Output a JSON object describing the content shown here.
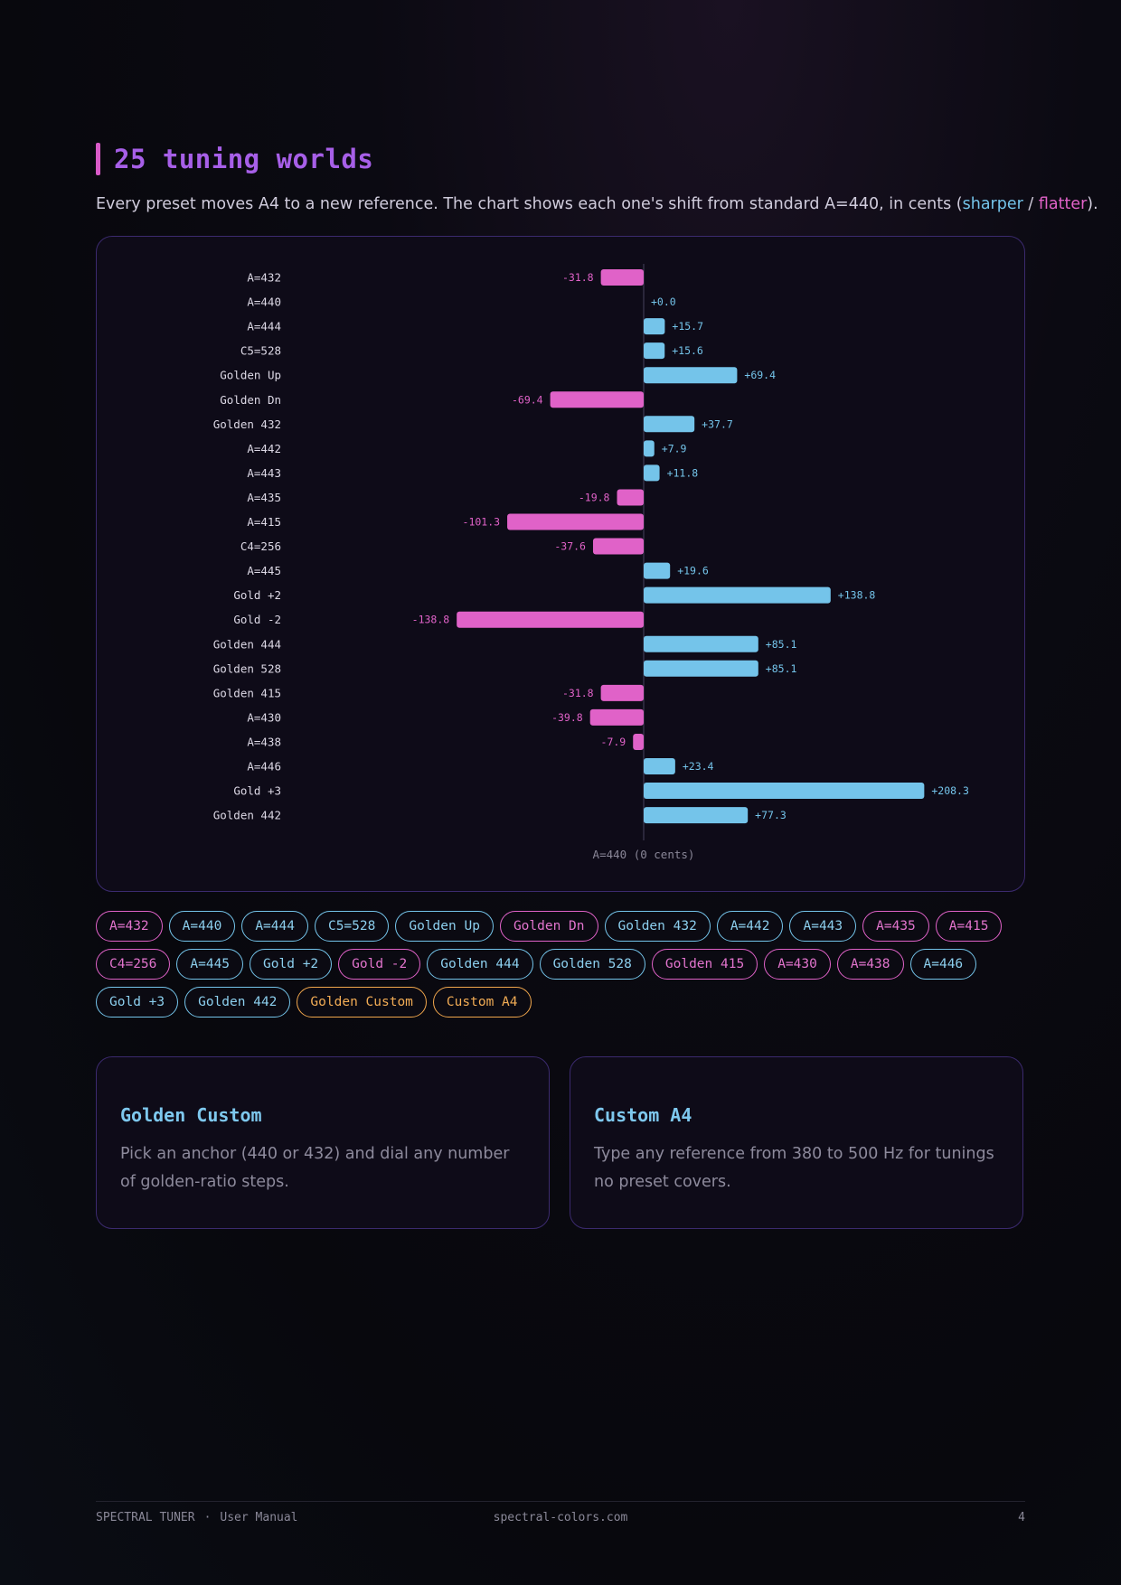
{
  "heading": {
    "title": "25 tuning worlds"
  },
  "intro": {
    "before": "Every preset moves A4 to a new reference. The chart shows each one's shift from standard A=440, in cents (",
    "sharper": "sharper",
    "sep": " / ",
    "flatter": "flatter",
    "after": ")."
  },
  "colors": {
    "sharper": "#74c4ea",
    "flatter": "#e062c8",
    "custom": "#f0a64c",
    "accent": "#a75fe8"
  },
  "chart_data": {
    "type": "bar",
    "orientation": "horizontal",
    "categories": [
      "A=432",
      "A=440",
      "A=444",
      "C5=528",
      "Golden Up",
      "Golden Dn",
      "Golden 432",
      "A=442",
      "A=443",
      "A=435",
      "A=415",
      "C4=256",
      "A=445",
      "Gold +2",
      "Gold -2",
      "Golden 444",
      "Golden 528",
      "Golden 415",
      "A=430",
      "A=438",
      "A=446",
      "Gold +3",
      "Golden 442"
    ],
    "values": [
      -31.8,
      0.0,
      15.7,
      15.6,
      69.4,
      -69.4,
      37.7,
      7.9,
      11.8,
      -19.8,
      -101.3,
      -37.6,
      19.6,
      138.8,
      -138.8,
      85.1,
      85.1,
      -31.8,
      -39.8,
      -7.9,
      23.4,
      208.3,
      77.3
    ],
    "value_labels": [
      "-31.8",
      "+0.0",
      "+15.7",
      "+15.6",
      "+69.4",
      "-69.4",
      "+37.7",
      "+7.9",
      "+11.8",
      "-19.8",
      "-101.3",
      "-37.6",
      "+19.6",
      "+138.8",
      "-138.8",
      "+85.1",
      "+85.1",
      "-31.8",
      "-39.8",
      "-7.9",
      "+23.4",
      "+208.3",
      "+77.3"
    ],
    "xlim": [
      -240,
      240
    ],
    "baseline": 0,
    "baseline_label": "A=440 (0 cents)",
    "grid": false
  },
  "chips": [
    {
      "label": "A=432",
      "kind": "neg"
    },
    {
      "label": "A=440",
      "kind": "pos"
    },
    {
      "label": "A=444",
      "kind": "pos"
    },
    {
      "label": "C5=528",
      "kind": "pos"
    },
    {
      "label": "Golden Up",
      "kind": "pos"
    },
    {
      "label": "Golden Dn",
      "kind": "neg"
    },
    {
      "label": "Golden 432",
      "kind": "pos"
    },
    {
      "label": "A=442",
      "kind": "pos"
    },
    {
      "label": "A=443",
      "kind": "pos"
    },
    {
      "label": "A=435",
      "kind": "neg"
    },
    {
      "label": "A=415",
      "kind": "neg"
    },
    {
      "label": "C4=256",
      "kind": "neg"
    },
    {
      "label": "A=445",
      "kind": "pos"
    },
    {
      "label": "Gold +2",
      "kind": "pos"
    },
    {
      "label": "Gold -2",
      "kind": "neg"
    },
    {
      "label": "Golden 444",
      "kind": "pos"
    },
    {
      "label": "Golden 528",
      "kind": "pos"
    },
    {
      "label": "Golden 415",
      "kind": "neg"
    },
    {
      "label": "A=430",
      "kind": "neg"
    },
    {
      "label": "A=438",
      "kind": "neg"
    },
    {
      "label": "A=446",
      "kind": "pos"
    },
    {
      "label": "Gold +3",
      "kind": "pos"
    },
    {
      "label": "Golden 442",
      "kind": "pos"
    },
    {
      "label": "Golden Custom",
      "kind": "cust"
    },
    {
      "label": "Custom A4",
      "kind": "cust"
    }
  ],
  "cards": [
    {
      "title": "Golden Custom",
      "text": "Pick an anchor (440 or 432) and dial any number of golden-ratio steps."
    },
    {
      "title": "Custom A4",
      "text": "Type any reference from 380 to 500 Hz for tunings no preset covers."
    }
  ],
  "footer": {
    "brand": "SPECTRAL TUNER",
    "separator": "·",
    "section": "User Manual",
    "site": "spectral-colors.com",
    "page_number": "4"
  }
}
